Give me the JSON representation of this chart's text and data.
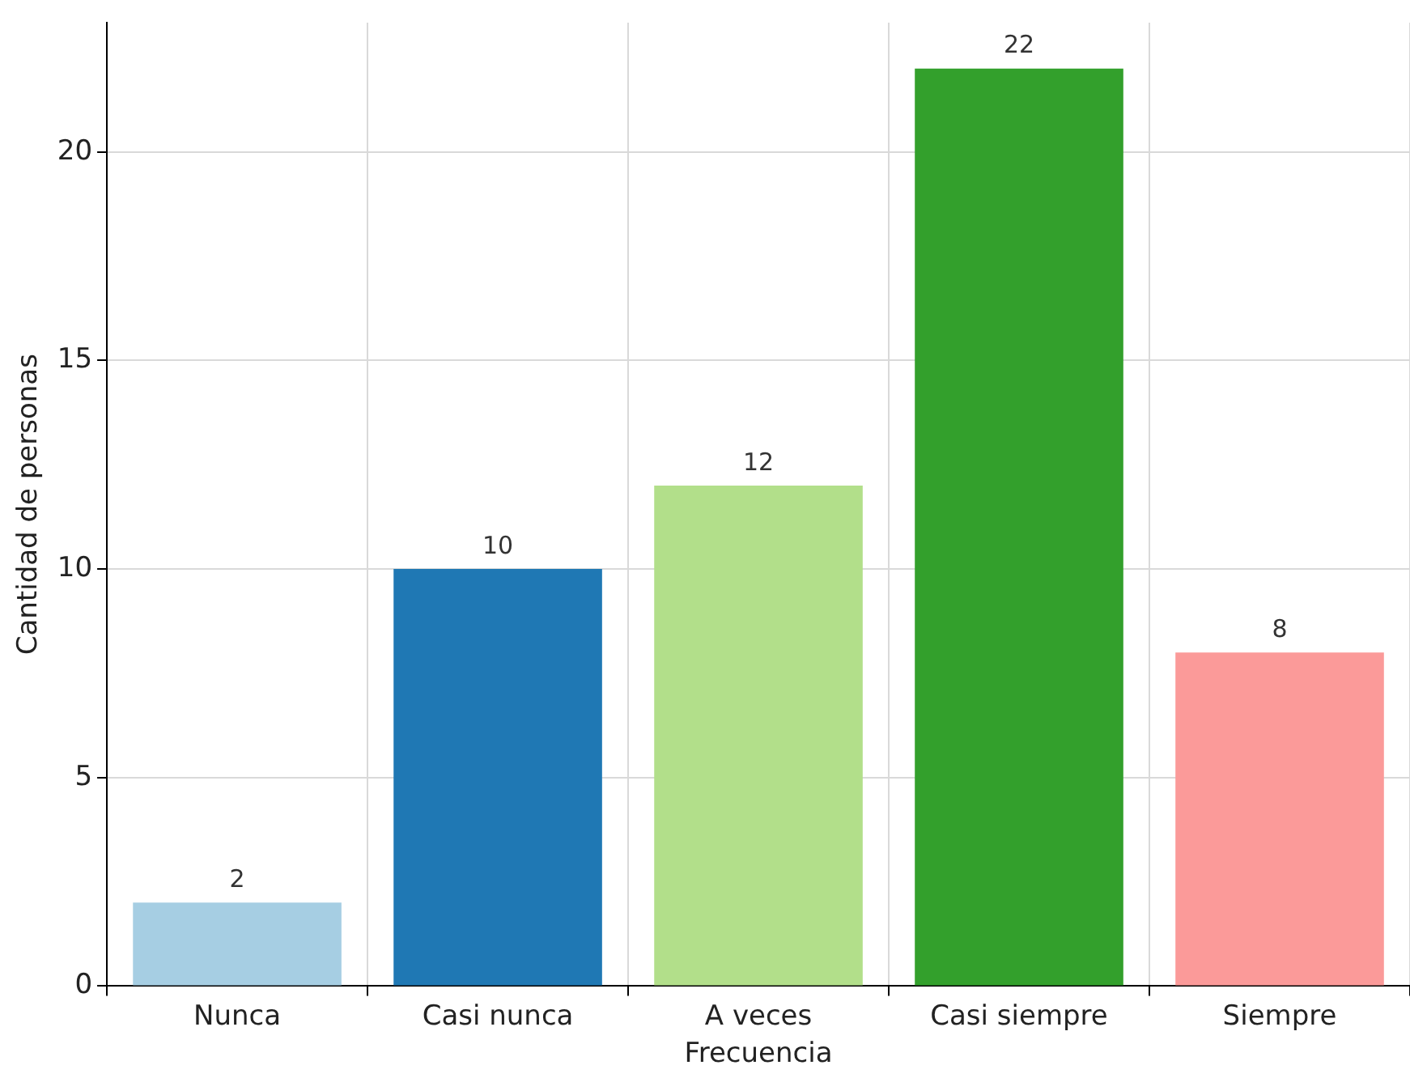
{
  "chart_data": {
    "type": "bar",
    "xlabel": "Frecuencia",
    "ylabel": "Cantidad de personas",
    "categories": [
      "Nunca",
      "Casi nunca",
      "A veces",
      "Casi siempre",
      "Siempre"
    ],
    "values": [
      2,
      10,
      12,
      22,
      8
    ],
    "colors": [
      "#a6cee3",
      "#1f78b4",
      "#b2df8a",
      "#33a02c",
      "#fb9a99"
    ],
    "ylim": [
      0,
      23.1
    ],
    "yticks": [
      0,
      5,
      10,
      15,
      20
    ],
    "grid": true,
    "data_labels": true,
    "legend": false
  }
}
